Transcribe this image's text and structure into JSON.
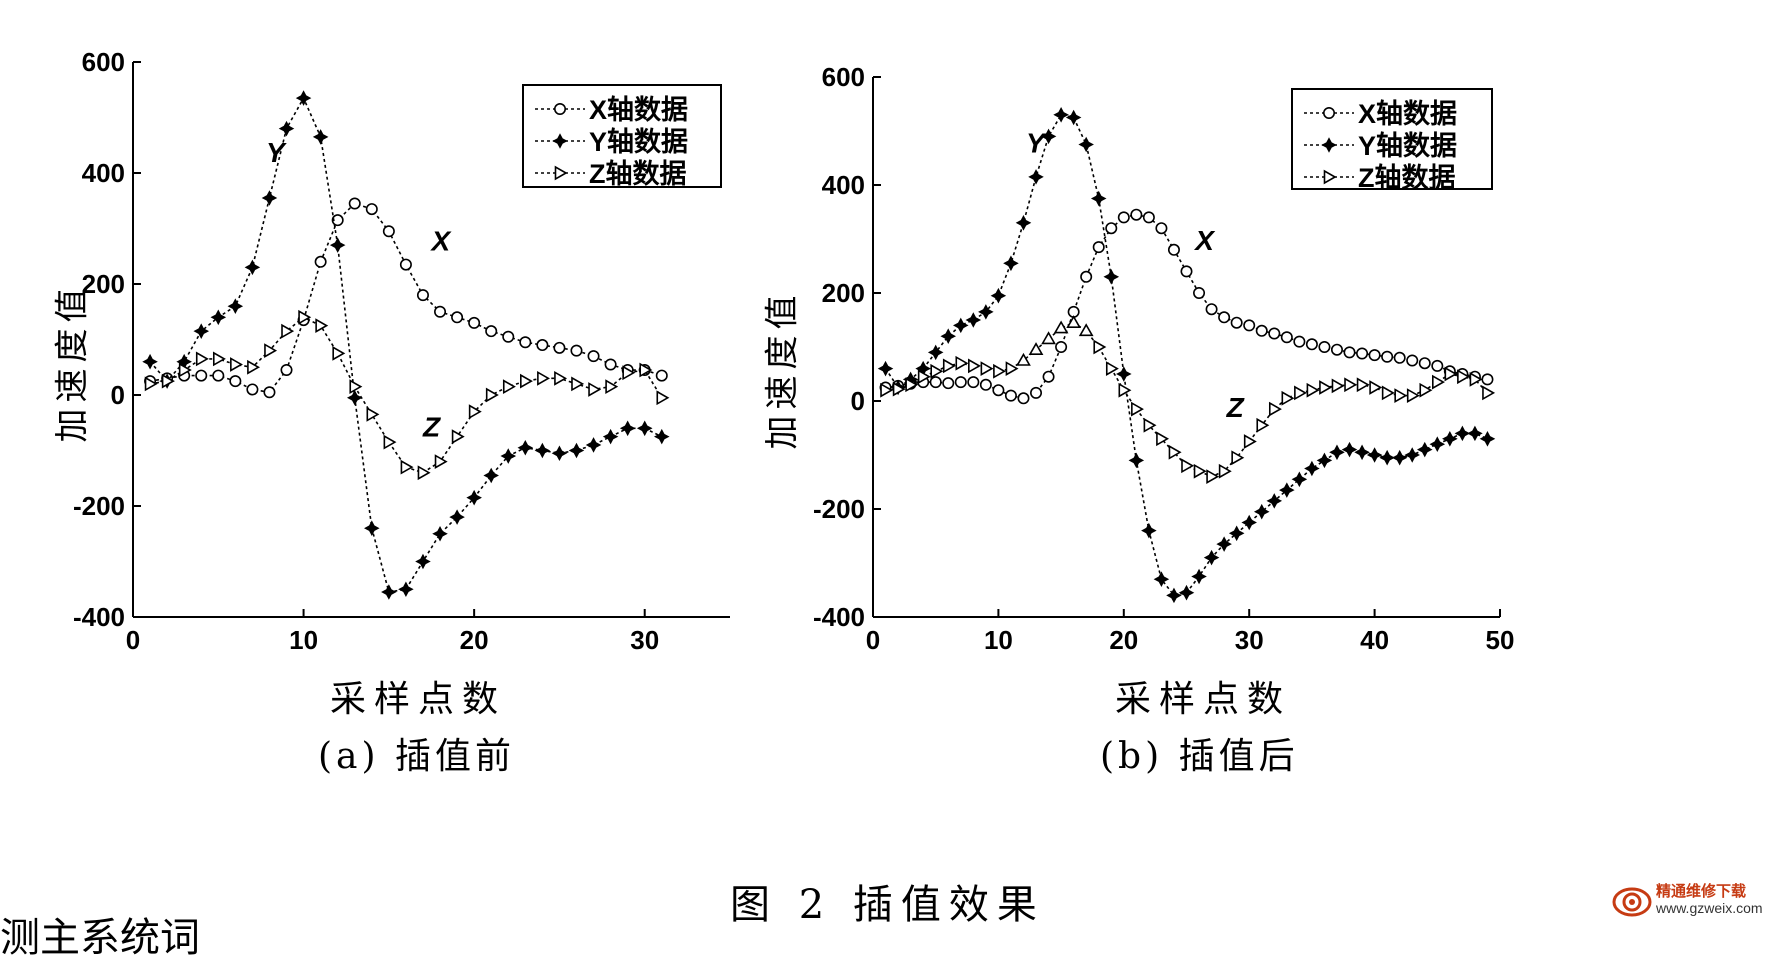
{
  "figure_caption": "图 2 插值效果",
  "bottom_text": "测主系统词",
  "watermark": {
    "name": "精通维修下载",
    "url": "www.gzweix.com"
  },
  "chart_data": [
    {
      "type": "line",
      "subcaption": "(a) 插值前",
      "xlabel": "采样点数",
      "ylabel": "加速度值",
      "xlim": [
        0,
        35
      ],
      "ylim": [
        -400,
        600
      ],
      "xticks": [
        0,
        10,
        20,
        30
      ],
      "yticks": [
        600,
        400,
        200,
        0,
        -200,
        -400
      ],
      "legend": {
        "position": "top-right",
        "entries": [
          "X轴数据",
          "Y轴数据",
          "Z轴数据"
        ]
      },
      "annotations": [
        {
          "text": "Y",
          "x": 7.8,
          "y": 420
        },
        {
          "text": "X",
          "x": 17.5,
          "y": 260
        },
        {
          "text": "Z",
          "x": 17.0,
          "y": -75
        }
      ],
      "series": [
        {
          "name": "X轴数据",
          "marker": "circle",
          "x": [
            1,
            2,
            3,
            4,
            5,
            6,
            7,
            8,
            9,
            10,
            11,
            12,
            13,
            14,
            15,
            16,
            17,
            18,
            19,
            20,
            21,
            22,
            23,
            24,
            25,
            26,
            27,
            28,
            29,
            30,
            31
          ],
          "y": [
            25,
            30,
            35,
            35,
            35,
            25,
            10,
            5,
            45,
            135,
            240,
            315,
            345,
            335,
            295,
            235,
            180,
            150,
            140,
            130,
            115,
            105,
            95,
            90,
            85,
            80,
            70,
            55,
            45,
            45,
            35
          ]
        },
        {
          "name": "Y轴数据",
          "marker": "star",
          "x": [
            1,
            2,
            3,
            4,
            5,
            6,
            7,
            8,
            9,
            10,
            11,
            12,
            13,
            14,
            15,
            16,
            17,
            18,
            19,
            20,
            21,
            22,
            23,
            24,
            25,
            26,
            27,
            28,
            29,
            30,
            31
          ],
          "y": [
            60,
            25,
            60,
            115,
            140,
            160,
            230,
            355,
            480,
            535,
            465,
            270,
            -5,
            -240,
            -355,
            -350,
            -300,
            -250,
            -220,
            -185,
            -145,
            -110,
            -95,
            -100,
            -105,
            -100,
            -90,
            -75,
            -60,
            -60,
            -75
          ]
        },
        {
          "name": "Z轴数据",
          "marker": "triangle-right",
          "x": [
            1,
            2,
            3,
            4,
            5,
            6,
            7,
            8,
            9,
            10,
            11,
            12,
            13,
            14,
            15,
            16,
            17,
            18,
            19,
            20,
            21,
            22,
            23,
            24,
            25,
            26,
            27,
            28,
            29,
            30,
            31
          ],
          "y": [
            20,
            25,
            45,
            65,
            65,
            55,
            50,
            80,
            115,
            140,
            125,
            75,
            15,
            -35,
            -85,
            -130,
            -140,
            -120,
            -75,
            -30,
            0,
            15,
            25,
            30,
            30,
            20,
            10,
            15,
            40,
            45,
            -5
          ]
        }
      ]
    },
    {
      "type": "line",
      "subcaption": "(b) 插值后",
      "xlabel": "采样点数",
      "ylabel": "加速度值",
      "xlim": [
        0,
        50
      ],
      "ylim": [
        -400,
        600
      ],
      "xticks": [
        0,
        10,
        20,
        30,
        40,
        50
      ],
      "yticks": [
        600,
        400,
        200,
        0,
        -200,
        -400
      ],
      "legend": {
        "position": "top-right",
        "entries": [
          "X轴数据",
          "Y轴数据",
          "Z轴数据"
        ]
      },
      "annotations": [
        {
          "text": "Y",
          "x": 12.2,
          "y": 460
        },
        {
          "text": "X",
          "x": 25.7,
          "y": 280
        },
        {
          "text": "Z",
          "x": 28.2,
          "y": -30
        }
      ],
      "series": [
        {
          "name": "X轴数据",
          "marker": "circle",
          "x": [
            1,
            2,
            3,
            4,
            5,
            6,
            7,
            8,
            9,
            10,
            11,
            12,
            13,
            14,
            15,
            16,
            17,
            18,
            19,
            20,
            21,
            22,
            23,
            24,
            25,
            26,
            27,
            28,
            29,
            30,
            31,
            32,
            33,
            34,
            35,
            36,
            37,
            38,
            39,
            40,
            41,
            42,
            43,
            44,
            45,
            46,
            47,
            48,
            49
          ],
          "y": [
            25,
            28,
            32,
            35,
            35,
            33,
            35,
            35,
            30,
            20,
            10,
            5,
            15,
            45,
            100,
            165,
            230,
            285,
            320,
            340,
            345,
            340,
            320,
            280,
            240,
            200,
            170,
            155,
            145,
            140,
            130,
            125,
            118,
            110,
            105,
            100,
            95,
            90,
            88,
            85,
            82,
            80,
            75,
            70,
            65,
            55,
            50,
            45,
            40
          ]
        },
        {
          "name": "Y轴数据",
          "marker": "star",
          "x": [
            1,
            2,
            3,
            4,
            5,
            6,
            7,
            8,
            9,
            10,
            11,
            12,
            13,
            14,
            15,
            16,
            17,
            18,
            19,
            20,
            21,
            22,
            23,
            24,
            25,
            26,
            27,
            28,
            29,
            30,
            31,
            32,
            33,
            34,
            35,
            36,
            37,
            38,
            39,
            40,
            41,
            42,
            43,
            44,
            45,
            46,
            47,
            48,
            49
          ],
          "y": [
            60,
            25,
            40,
            60,
            90,
            120,
            140,
            150,
            165,
            195,
            255,
            330,
            415,
            490,
            530,
            525,
            475,
            375,
            230,
            50,
            -110,
            -240,
            -330,
            -360,
            -355,
            -325,
            -290,
            -265,
            -245,
            -225,
            -205,
            -185,
            -165,
            -145,
            -125,
            -110,
            -95,
            -90,
            -95,
            -100,
            -105,
            -105,
            -100,
            -90,
            -80,
            -70,
            -60,
            -60,
            -70
          ]
        },
        {
          "name": "Z轴数据",
          "marker": "triangle-right",
          "x": [
            1,
            2,
            3,
            4,
            5,
            6,
            7,
            8,
            9,
            10,
            11,
            12,
            13,
            14,
            15,
            16,
            17,
            18,
            19,
            20,
            21,
            22,
            23,
            24,
            25,
            26,
            27,
            28,
            29,
            30,
            31,
            32,
            33,
            34,
            35,
            36,
            37,
            38,
            39,
            40,
            41,
            42,
            43,
            44,
            45,
            46,
            47,
            48,
            49
          ],
          "y": [
            20,
            22,
            30,
            45,
            55,
            65,
            70,
            65,
            60,
            55,
            60,
            75,
            95,
            115,
            135,
            145,
            130,
            100,
            60,
            20,
            -15,
            -45,
            -70,
            -95,
            -120,
            -130,
            -140,
            -130,
            -105,
            -75,
            -45,
            -15,
            5,
            15,
            20,
            25,
            28,
            30,
            30,
            25,
            15,
            10,
            10,
            20,
            35,
            50,
            45,
            40,
            15
          ]
        }
      ]
    }
  ]
}
